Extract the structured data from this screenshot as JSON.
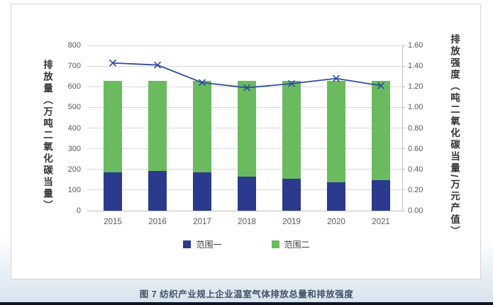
{
  "caption": "图 7 纺织产业规上企业温室气体排放总量和排放强度",
  "colors": {
    "scope1_bar": "#2b3a8c",
    "scope2_bar": "#6bba60",
    "intensity_line": "#2e4d9e",
    "gridline": "#d9d9d9",
    "tick_text": "#595959",
    "caption_text": "#3f5266"
  },
  "chart_data": {
    "type": "bar",
    "subtype": "stacked-bar-with-line",
    "categories": [
      "2015",
      "2016",
      "2017",
      "2018",
      "2019",
      "2020",
      "2021"
    ],
    "series": [
      {
        "name": "范围一",
        "type": "bar",
        "axis": "left",
        "color": "#2b3a8c",
        "values": [
          186,
          191,
          187,
          166,
          155,
          139,
          147
        ]
      },
      {
        "name": "范围二",
        "type": "bar",
        "axis": "left",
        "color": "#6bba60",
        "values": [
          444,
          439,
          441,
          464,
          472,
          490,
          481
        ]
      },
      {
        "name": "排放强度",
        "type": "line",
        "axis": "right",
        "color": "#2e4d9e",
        "marker": "x",
        "values": [
          1.43,
          1.41,
          1.24,
          1.19,
          1.23,
          1.28,
          1.21
        ]
      }
    ],
    "totals": [
      630,
      630,
      628,
      630,
      627,
      629,
      628
    ],
    "left_axis": {
      "title": "排放量（万吨二氧化碳当量）",
      "min": 0,
      "max": 800,
      "step": 100,
      "ticks": [
        "0",
        "100",
        "200",
        "300",
        "400",
        "500",
        "600",
        "700",
        "800"
      ]
    },
    "right_axis": {
      "title": "排放强度（吨二氧化碳当量/万元产值）",
      "min": 0,
      "max": 1.6,
      "step": 0.2,
      "ticks": [
        "0.00",
        "0.20",
        "0.40",
        "0.60",
        "0.80",
        "1.00",
        "1.20",
        "1.40",
        "1.60"
      ]
    },
    "legend": [
      "范围一",
      "范围二"
    ],
    "legend_position": "bottom",
    "grid": true,
    "stacked": true
  }
}
